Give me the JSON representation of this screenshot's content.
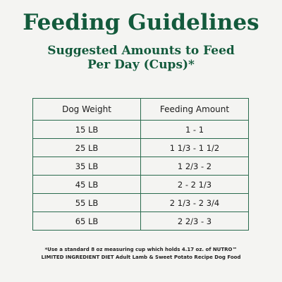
{
  "heading": {
    "title": "Feeding Guidelines",
    "subtitle_line1": "Suggested Amounts to Feed",
    "subtitle_line2": "Per Day (Cups)*"
  },
  "table": {
    "headers": [
      "Dog  Weight",
      "Feeding Amount"
    ],
    "rows": [
      {
        "weight": "15 LB",
        "amount": "1 - 1"
      },
      {
        "weight": "25 LB",
        "amount": "1 1/3 - 1 1/2"
      },
      {
        "weight": "35 LB",
        "amount": "1 2/3 - 2"
      },
      {
        "weight": "45 LB",
        "amount": "2 - 2 1/3"
      },
      {
        "weight": "55 LB",
        "amount": "2 1/3 - 2 3/4"
      },
      {
        "weight": "65 LB",
        "amount": "2 2/3 - 3"
      }
    ]
  },
  "footnote": {
    "line1": "*Use a standard 8 oz measuring cup which holds 4.17 oz. of NUTRO™",
    "line2": "LIMITED INGREDIENT DIET Adult Lamb & Sweet Potato Recipe Dog Food"
  },
  "colors": {
    "accent": "#135a3c",
    "background": "#f4f4f2",
    "table_border": "#2a6b4e"
  }
}
